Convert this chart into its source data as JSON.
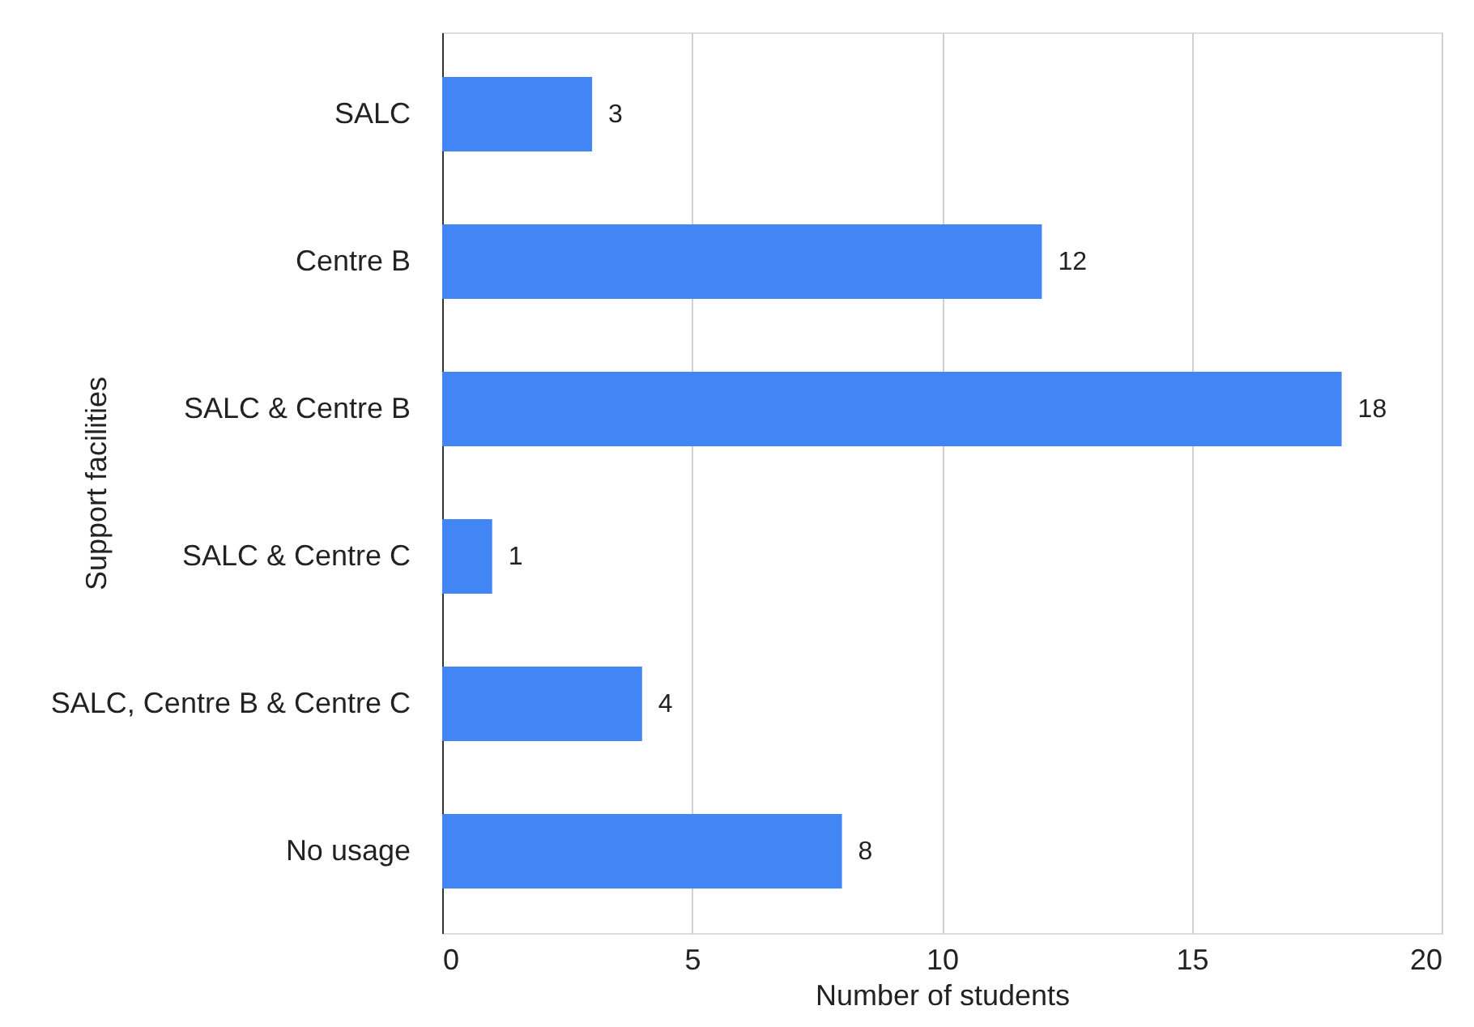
{
  "chart_data": {
    "type": "bar",
    "orientation": "horizontal",
    "xlabel": "Number of students",
    "ylabel": "Support facilities",
    "categories": [
      "SALC",
      "Centre B",
      "SALC & Centre B",
      "SALC & Centre C",
      "SALC, Centre B & Centre C",
      "No usage"
    ],
    "values": [
      3,
      12,
      18,
      1,
      4,
      8
    ],
    "color": "#4285f4",
    "xlim": [
      0,
      20
    ],
    "xticks": [
      0,
      5,
      10,
      15,
      20
    ],
    "grid": "x",
    "data_labels": true
  }
}
